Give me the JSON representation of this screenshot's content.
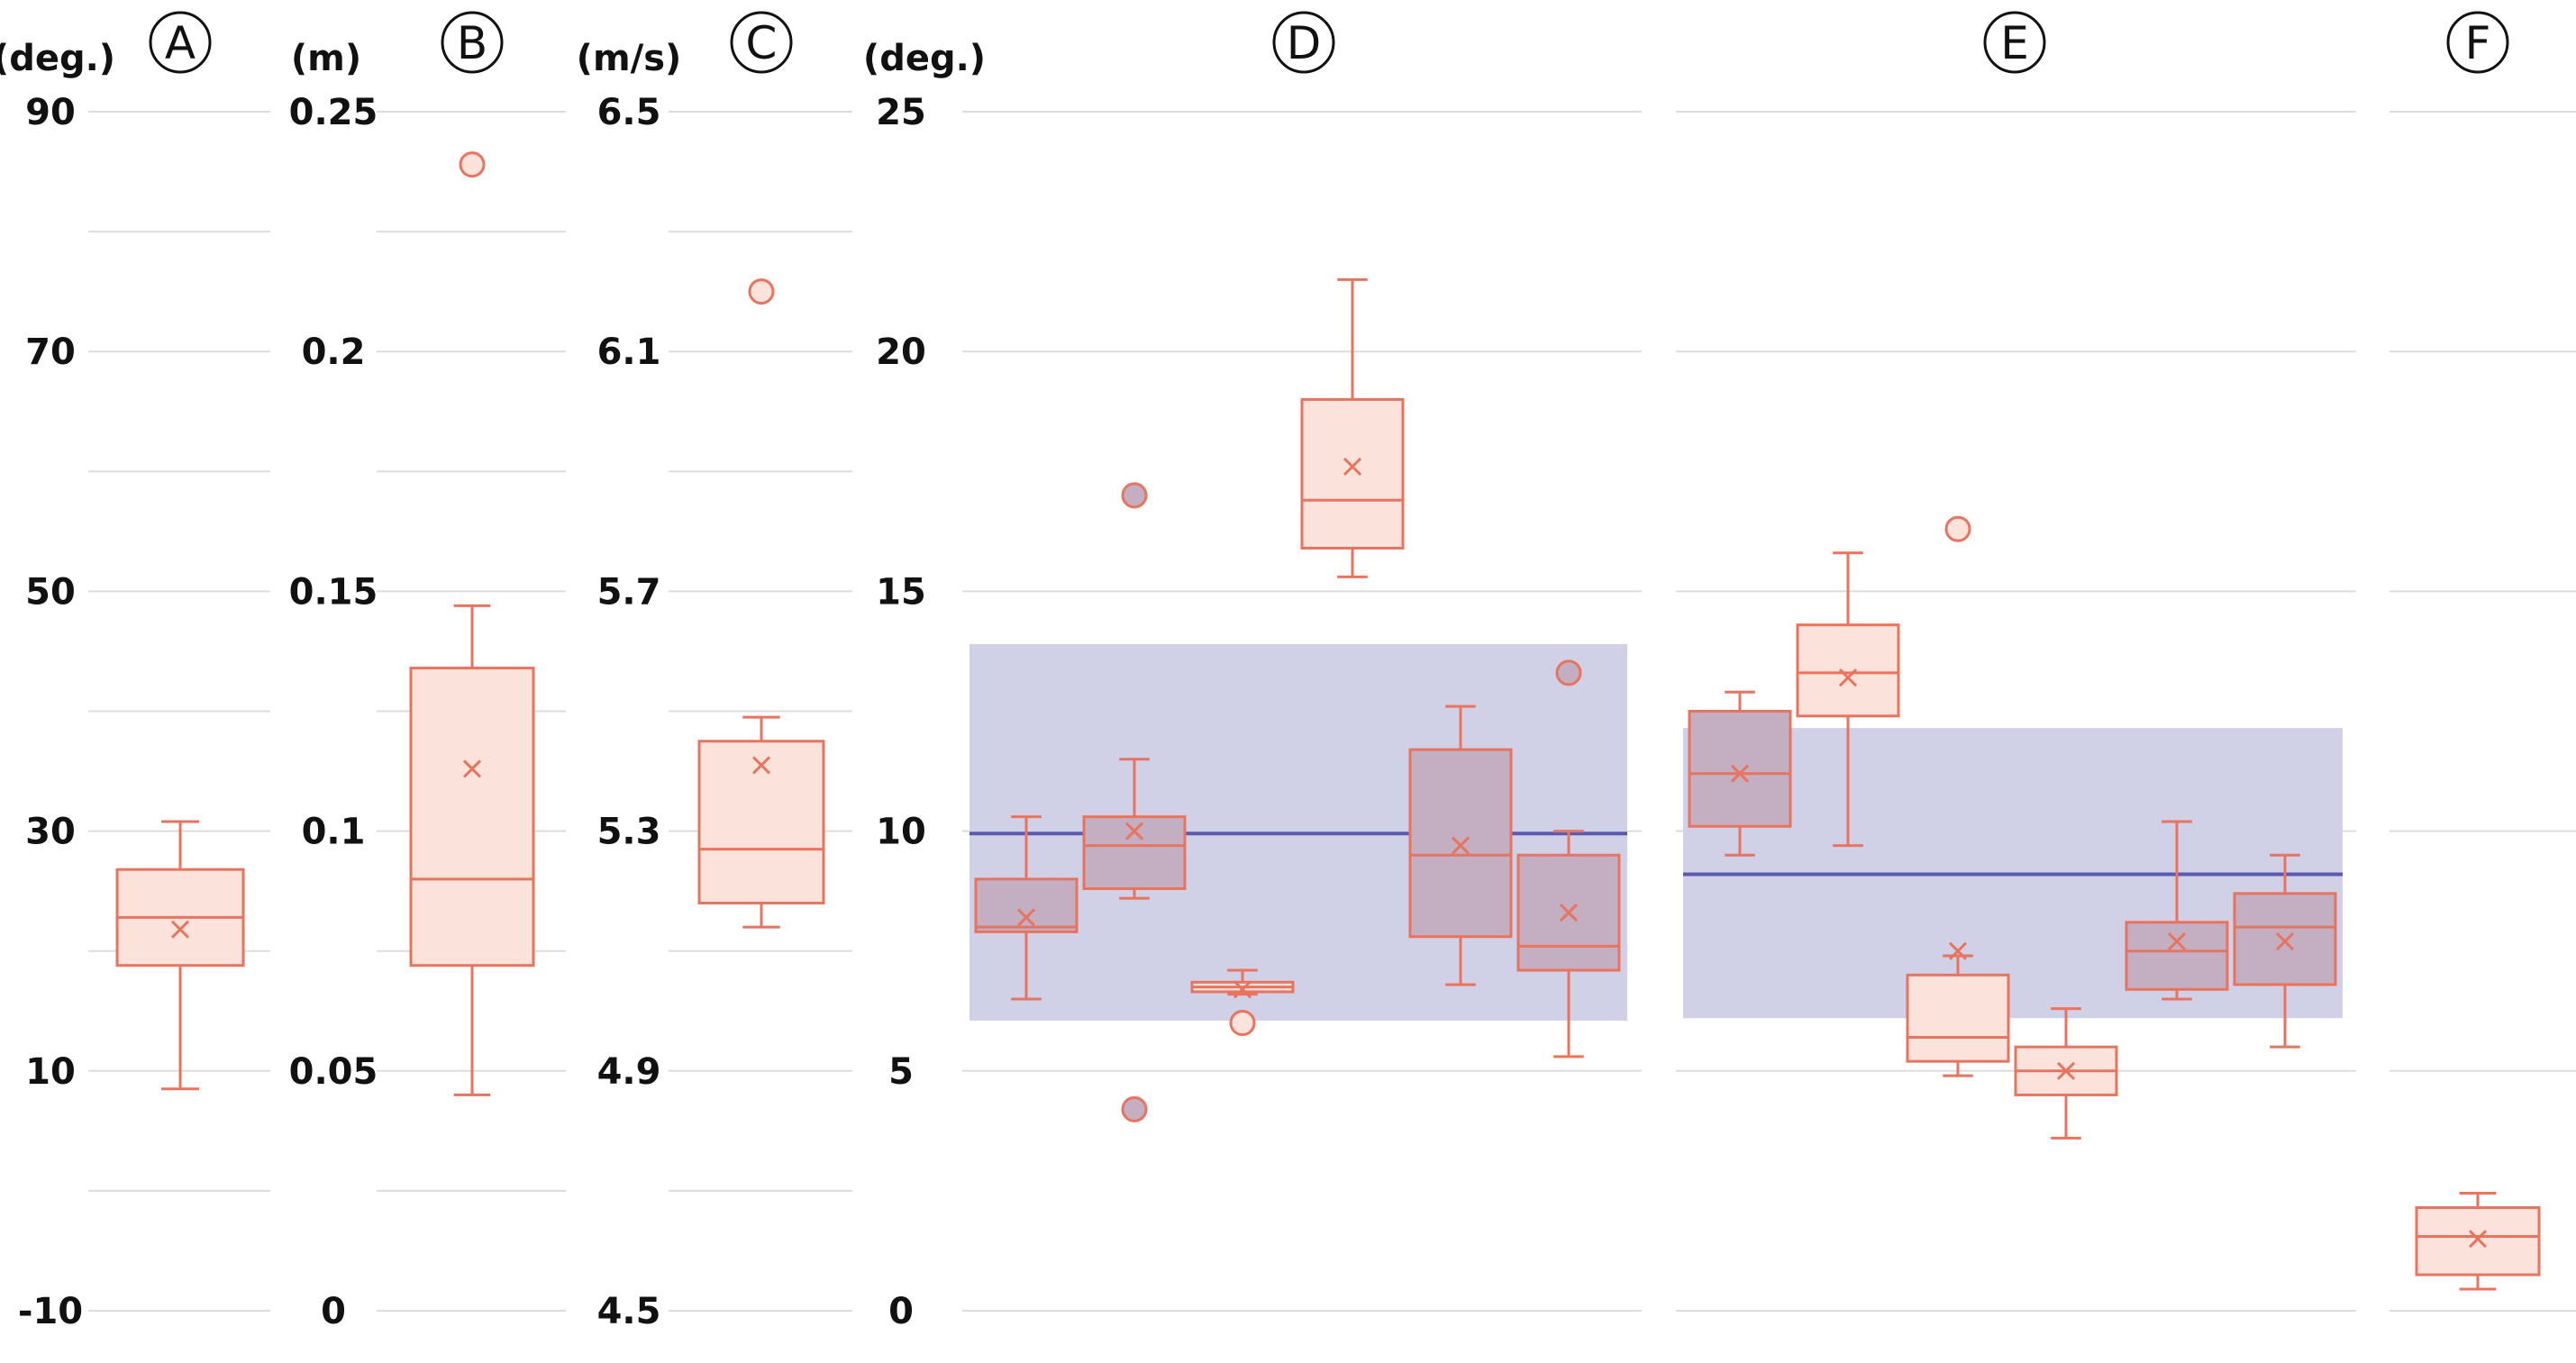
{
  "chart_data": [
    {
      "type": "box",
      "panel": "A",
      "unit": "(deg.)",
      "ylim": [
        -10,
        90
      ],
      "yticks": [
        -10,
        10,
        30,
        50,
        70,
        90
      ],
      "grid_step": 10,
      "boxes": [
        {
          "whisker_low": 8.5,
          "q1": 18.8,
          "median": 22.8,
          "q3": 26.8,
          "whisker_high": 30.8,
          "mean": 21.8,
          "outliers": [],
          "style": "light"
        }
      ],
      "bands": []
    },
    {
      "type": "box",
      "panel": "B",
      "unit": "(m)",
      "ylim": [
        0,
        0.25
      ],
      "yticks": [
        0,
        0.05,
        0.1,
        0.15,
        0.2,
        0.25
      ],
      "grid_step": 0.025,
      "boxes": [
        {
          "whisker_low": 0.045,
          "q1": 0.072,
          "median": 0.09,
          "q3": 0.134,
          "whisker_high": 0.147,
          "mean": 0.113,
          "outliers": [
            0.239
          ],
          "style": "light"
        }
      ],
      "bands": []
    },
    {
      "type": "box",
      "panel": "C",
      "unit": "(m/s)",
      "ylim": [
        4.5,
        6.5
      ],
      "yticks": [
        4.5,
        4.9,
        5.3,
        5.7,
        6.1,
        6.5
      ],
      "grid_step": 0.2,
      "boxes": [
        {
          "whisker_low": 5.14,
          "q1": 5.18,
          "median": 5.27,
          "q3": 5.45,
          "whisker_high": 5.49,
          "mean": 5.41,
          "outliers": [
            6.2
          ],
          "style": "light"
        }
      ],
      "bands": []
    },
    {
      "type": "box",
      "panel": "D",
      "unit": "(deg.)",
      "ylim": [
        0,
        25
      ],
      "yticks": [
        0,
        5,
        10,
        15,
        20,
        25
      ],
      "grid_step": 5,
      "boxes": [
        {
          "whisker_low": 6.5,
          "q1": 7.9,
          "median": 8.0,
          "q3": 9.0,
          "whisker_high": 10.3,
          "mean": 8.2,
          "outliers": [],
          "style": "dark"
        },
        {
          "whisker_low": 8.6,
          "q1": 8.8,
          "median": 9.7,
          "q3": 10.3,
          "whisker_high": 11.5,
          "mean": 10.0,
          "outliers": [
            17.0,
            4.2
          ],
          "style": "dark"
        },
        {
          "whisker_low": 6.6,
          "q1": 6.65,
          "median": 6.75,
          "q3": 6.85,
          "whisker_high": 7.1,
          "mean": 6.7,
          "outliers": [
            6.0
          ],
          "style": "light"
        },
        {
          "whisker_low": 15.3,
          "q1": 15.9,
          "median": 16.9,
          "q3": 19.0,
          "whisker_high": 21.5,
          "mean": 17.6,
          "outliers": [],
          "style": "light"
        },
        {
          "whisker_low": 6.8,
          "q1": 7.8,
          "median": 9.5,
          "q3": 11.7,
          "whisker_high": 12.6,
          "mean": 9.7,
          "outliers": [],
          "style": "dark"
        },
        {
          "whisker_low": 5.3,
          "q1": 7.1,
          "median": 7.6,
          "q3": 9.5,
          "whisker_high": 10.0,
          "mean": 8.3,
          "outliers": [
            13.3
          ],
          "style": "dark"
        }
      ],
      "bands": [
        {
          "low": 6.05,
          "high": 13.9,
          "mean": 9.95
        }
      ]
    },
    {
      "type": "box",
      "panel": "E",
      "unit": "",
      "ylim": [
        0,
        25
      ],
      "yticks": [
        0,
        5,
        10,
        15,
        20,
        25
      ],
      "grid_step": 5,
      "boxes": [
        {
          "whisker_low": 9.5,
          "q1": 10.1,
          "median": 11.2,
          "q3": 12.5,
          "whisker_high": 12.9,
          "mean": 11.2,
          "outliers": [],
          "style": "dark"
        },
        {
          "whisker_low": 9.7,
          "q1": 12.4,
          "median": 13.3,
          "q3": 14.3,
          "whisker_high": 15.8,
          "mean": 13.2,
          "outliers": [],
          "style": "light"
        },
        {
          "whisker_low": 4.9,
          "q1": 5.2,
          "median": 5.7,
          "q3": 7.0,
          "whisker_high": 7.4,
          "mean": 7.5,
          "outliers": [
            16.3
          ],
          "style": "light"
        },
        {
          "whisker_low": 3.6,
          "q1": 4.5,
          "median": 5.0,
          "q3": 5.5,
          "whisker_high": 6.3,
          "mean": 5.0,
          "outliers": [],
          "style": "light"
        },
        {
          "whisker_low": 6.5,
          "q1": 6.7,
          "median": 7.5,
          "q3": 8.1,
          "whisker_high": 10.2,
          "mean": 7.7,
          "outliers": [],
          "style": "dark"
        },
        {
          "whisker_low": 5.5,
          "q1": 6.8,
          "median": 8.0,
          "q3": 8.7,
          "whisker_high": 9.5,
          "mean": 7.7,
          "outliers": [],
          "style": "dark"
        }
      ],
      "bands": [
        {
          "low": 6.1,
          "high": 12.15,
          "mean": 9.1
        }
      ]
    },
    {
      "type": "box",
      "panel": "F",
      "unit": "",
      "ylim": [
        0,
        25
      ],
      "yticks": [
        0,
        5,
        10,
        15,
        20,
        25
      ],
      "grid_step": 5,
      "boxes": [
        {
          "whisker_low": 0.45,
          "q1": 0.75,
          "median": 1.55,
          "q3": 2.15,
          "whisker_high": 2.45,
          "mean": 1.5,
          "outliers": [],
          "style": "light"
        }
      ],
      "bands": []
    }
  ],
  "colors": {
    "box_stroke": "#e8745f",
    "box_fill_light": "#fbe3dc",
    "box_fill_dark": "#c3aec2",
    "band_fill": "#d0d0e6",
    "mean_line": "#5a5aac",
    "grid": "#dddddd",
    "text": "#111111"
  }
}
